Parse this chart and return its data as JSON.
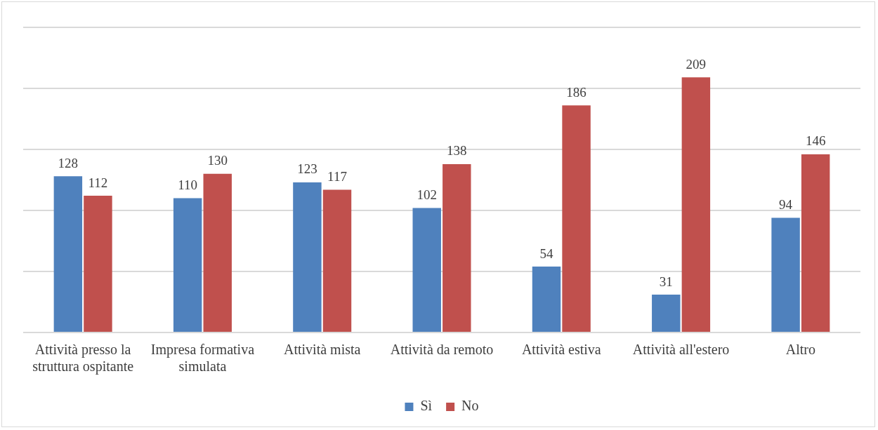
{
  "chart_data": {
    "type": "bar",
    "categories": [
      "Attività presso la struttura ospitante",
      "Impresa formativa simulata",
      "Attività mista",
      "Attività da remoto",
      "Attività estiva",
      "Attività all'estero",
      "Altro"
    ],
    "series": [
      {
        "name": "Sì",
        "color": "#4f81bd",
        "values": [
          128,
          110,
          123,
          102,
          54,
          31,
          94
        ]
      },
      {
        "name": "No",
        "color": "#c0504d",
        "values": [
          112,
          130,
          117,
          138,
          186,
          209,
          146
        ]
      }
    ],
    "ylim": [
      0,
      250
    ],
    "yticks": [
      {
        "value": 0,
        "label": null
      },
      {
        "value": 50,
        "label": null
      },
      {
        "value": 100,
        "label": null
      },
      {
        "value": 150,
        "label": null
      },
      {
        "value": 200,
        "label": null
      },
      {
        "value": 250,
        "label": null
      }
    ],
    "tick_labels": "x",
    "grid": "y",
    "legend": "bottom",
    "data_labels": true
  }
}
